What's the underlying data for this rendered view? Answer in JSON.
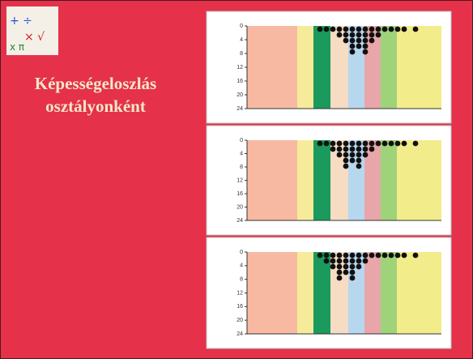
{
  "title_lines": [
    "Képességeloszlás",
    "osztályonként"
  ],
  "charts": [
    {
      "yticks": [
        0,
        4,
        8,
        12,
        16,
        20,
        24
      ]
    },
    {
      "yticks": [
        0,
        4,
        8,
        12,
        16,
        20,
        24
      ]
    },
    {
      "yticks": [
        0,
        4,
        8,
        12,
        16,
        20,
        24
      ]
    }
  ]
}
